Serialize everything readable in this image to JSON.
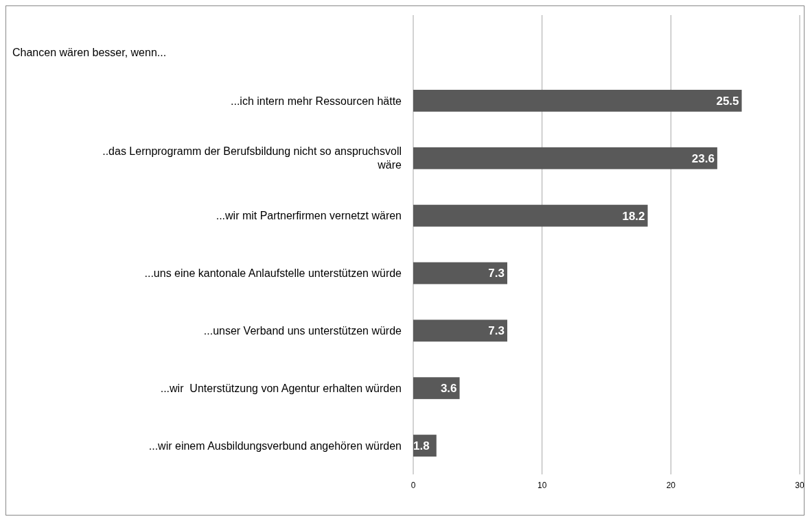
{
  "chart_data": {
    "type": "bar",
    "orientation": "horizontal",
    "title": "Chancen wären besser, wenn...",
    "categories": [
      "...ich intern mehr Ressourcen hätte",
      "..das Lernprogramm der Berufsbildung nicht so anspruchsvoll wäre",
      "...wir mit Partnerfirmen vernetzt wären",
      "...uns eine kantonale Anlaufstelle unterstützen würde",
      "...unser Verband uns unterstützen würde",
      "...wir  Unterstützung von Agentur erhalten würden",
      "...wir einem Ausbildungsverbund angehören würden"
    ],
    "values": [
      25.5,
      23.6,
      18.2,
      7.3,
      7.3,
      3.6,
      1.8
    ],
    "color": "#595959",
    "xlim": [
      0,
      30
    ],
    "xticks": [
      0,
      10,
      20,
      30
    ],
    "grid": "x",
    "data_labels": true
  }
}
